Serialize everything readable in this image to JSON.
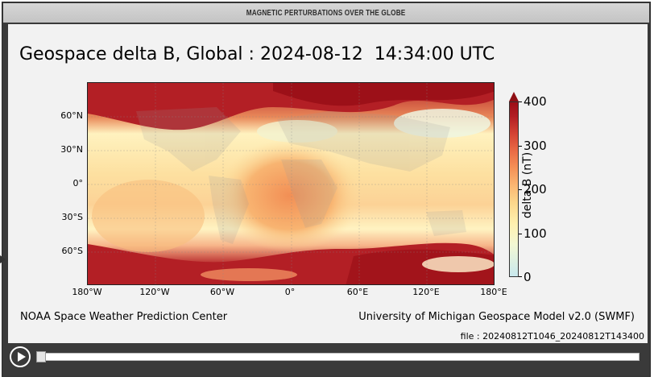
{
  "header": {
    "title": "MAGNETIC PERTURBATIONS OVER THE GLOBE"
  },
  "plot": {
    "title": "Geospace delta B, Global : 2024-08-12  14:34:00 UTC",
    "lat_ticks": [
      "60°N",
      "30°N",
      "0°",
      "30°S",
      "60°S"
    ],
    "lon_ticks": [
      "180°W",
      "120°W",
      "60°W",
      "0°",
      "60°E",
      "120°E",
      "180°E"
    ],
    "colorbar": {
      "label": "delta B (nT)",
      "ticks": [
        "400",
        "300",
        "200",
        "100",
        "0"
      ],
      "range": [
        0,
        400
      ],
      "colormap": "YlOrRd-with-cyan-low"
    }
  },
  "footer": {
    "left": "NOAA Space Weather Prediction Center",
    "right": "University of Michigan Geospace Model v2.0 (SWMF)",
    "file": "file : 20240812T1046_20240812T143400"
  },
  "player": {
    "play_icon": "play-icon",
    "position": 0
  }
}
